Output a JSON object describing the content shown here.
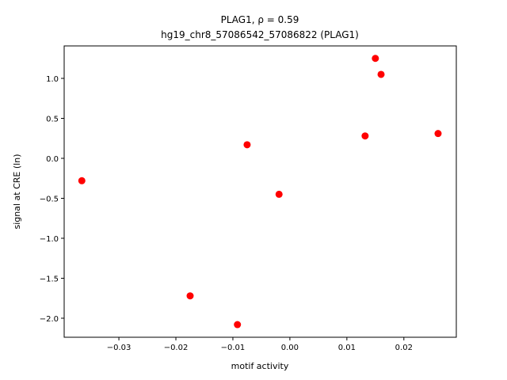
{
  "chart_data": {
    "type": "scatter",
    "title": "PLAG1, ρ = 0.59",
    "subtitle": "hg19_chr8_57086542_57086822 (PLAG1)",
    "x_label": "motif activity",
    "y_label": "signal at CRE (ln)",
    "x": [
      0.015,
      0.016,
      0.026,
      0.0132,
      -0.0075,
      -0.0365,
      -0.0019,
      -0.0175,
      -0.0092
    ],
    "values": [
      1.25,
      1.05,
      0.31,
      0.28,
      0.17,
      -0.28,
      -0.45,
      -1.72,
      -2.08
    ],
    "color": "#ff0000",
    "xlim": [
      -0.0396,
      0.0292
    ],
    "xticks": [
      {
        "value": -0.03,
        "label": "−0.03"
      },
      {
        "value": -0.02,
        "label": "−0.02"
      },
      {
        "value": -0.01,
        "label": "−0.01"
      },
      {
        "value": 0,
        "label": "0.00"
      },
      {
        "value": 0.01,
        "label": "0.01"
      },
      {
        "value": 0.02,
        "label": "0.02"
      }
    ],
    "ylim": [
      -2.238,
      1.406
    ],
    "yticks": [
      {
        "value": -2,
        "label": "−2.0"
      },
      {
        "value": -1.5,
        "label": "−1.5"
      },
      {
        "value": -1,
        "label": "−1.0"
      },
      {
        "value": -0.5,
        "label": "−0.5"
      },
      {
        "value": 0,
        "label": "0.0"
      },
      0.5,
      {
        "value": 1,
        "label": "1.0"
      }
    ]
  }
}
